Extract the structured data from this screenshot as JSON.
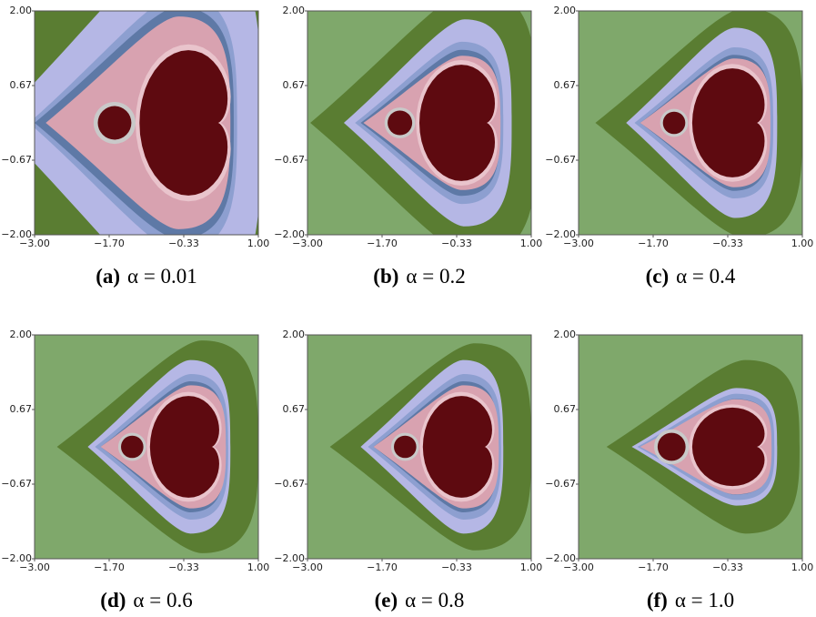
{
  "axes": {
    "xticks": [
      "−3.00",
      "−1.70",
      "−0.33",
      "1.00"
    ],
    "yticks": [
      "2.00",
      "0.67",
      "−0.67",
      "−2.00"
    ]
  },
  "panels": [
    {
      "label": "(a)",
      "caption": "α = 0.01"
    },
    {
      "label": "(b)",
      "caption": "α = 0.2"
    },
    {
      "label": "(c)",
      "caption": "α = 0.4"
    },
    {
      "label": "(d)",
      "caption": "α = 0.6"
    },
    {
      "label": "(e)",
      "caption": "α = 0.8"
    },
    {
      "label": "(f)",
      "caption": "α = 1.0"
    }
  ]
}
